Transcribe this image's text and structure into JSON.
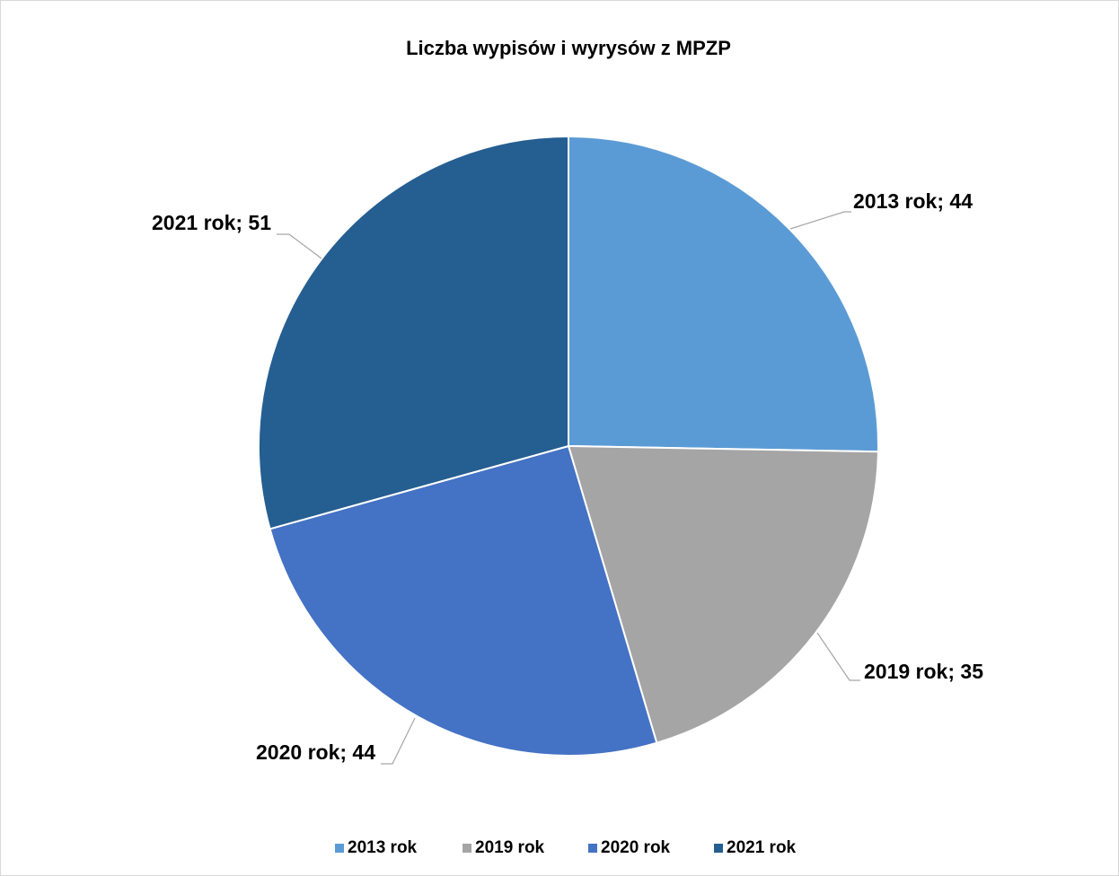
{
  "chart_data": {
    "type": "pie",
    "title": "Liczba wypisów i wyrysów z MPZP",
    "categories": [
      "2013 rok",
      "2019 rok",
      "2020 rok",
      "2021 rok"
    ],
    "values": [
      44,
      35,
      44,
      51
    ],
    "value_labels": [
      "2013 rok; 44",
      "2019 rok; 35",
      "2020 rok; 44",
      "2021 rok; 51"
    ],
    "colors": [
      "#5b9bd5",
      "#a5a5a5",
      "#4472c4",
      "#255e91"
    ],
    "legend": "bottom"
  }
}
